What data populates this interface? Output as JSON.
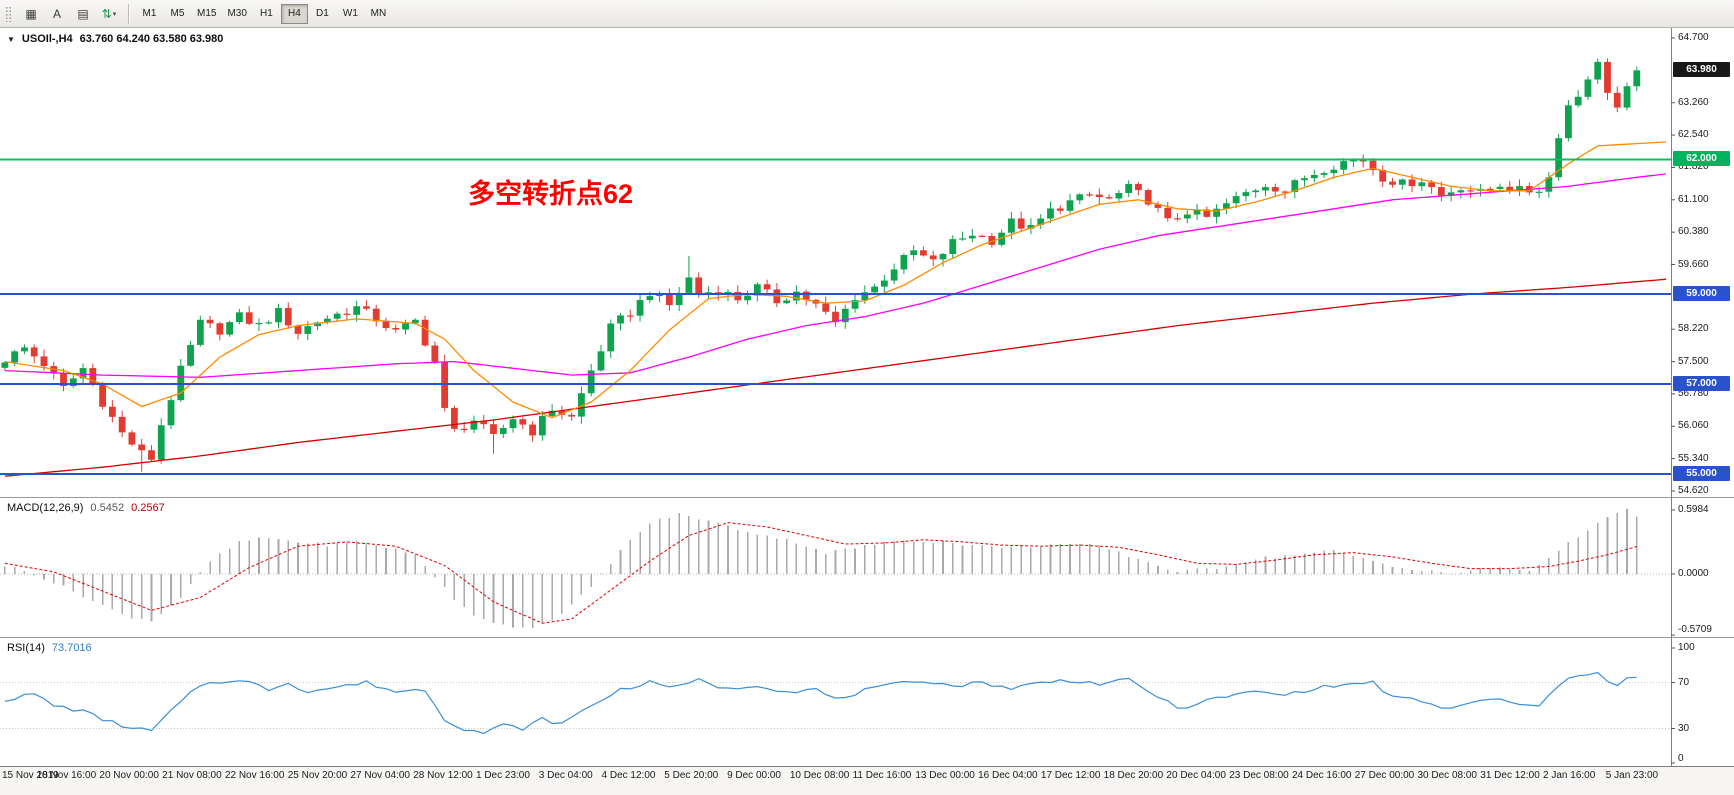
{
  "window": {
    "title": "USOIl-,H4",
    "ohlc": "63.760 64.240 63.580 63.980"
  },
  "toolbar": {
    "tools": [
      {
        "name": "market-grid",
        "glyph": "▦"
      },
      {
        "name": "text-annotation",
        "glyph": "A"
      },
      {
        "name": "indicator-window",
        "glyph": "▤"
      },
      {
        "name": "scale-arrows",
        "glyph": "⇅",
        "color": "#1b9a4b",
        "caret": true
      }
    ],
    "timeframes": [
      "M1",
      "M5",
      "M15",
      "M30",
      "H1",
      "H4",
      "D1",
      "W1",
      "MN"
    ],
    "active_timeframe": "H4"
  },
  "annotation": {
    "text": "多空转折点62",
    "color": "#ff0000"
  },
  "indicators": {
    "macd": {
      "name": "MACD(12,26,9)",
      "value": "0.5452",
      "signal": "0.2567",
      "axis": [
        {
          "label": "0.5984",
          "v": 0.5984
        },
        {
          "label": "0.0000",
          "v": 0
        },
        {
          "label": "-0.5709",
          "v": -0.5709
        }
      ]
    },
    "rsi": {
      "name": "RSI(14)",
      "value": "73.7016",
      "axis": [
        {
          "label": "100",
          "v": 100
        },
        {
          "label": "70",
          "v": 70
        },
        {
          "label": "30",
          "v": 30
        },
        {
          "label": "0",
          "v": 0
        }
      ],
      "levels": [
        70,
        30
      ]
    }
  },
  "price_axis": {
    "ticks": [
      {
        "label": "64.700",
        "p": 64.7
      },
      {
        "label": "63.260",
        "p": 63.26
      },
      {
        "label": "62.540",
        "p": 62.54
      },
      {
        "label": "61.820",
        "p": 61.82
      },
      {
        "label": "61.100",
        "p": 61.1
      },
      {
        "label": "60.380",
        "p": 60.38
      },
      {
        "label": "59.660",
        "p": 59.66
      },
      {
        "label": "58.220",
        "p": 58.22
      },
      {
        "label": "57.500",
        "p": 57.5
      },
      {
        "label": "56.780",
        "p": 56.78
      },
      {
        "label": "56.060",
        "p": 56.06
      },
      {
        "label": "55.340",
        "p": 55.34
      },
      {
        "label": "54.620",
        "p": 54.62
      }
    ],
    "badges": [
      {
        "label": "63.980",
        "p": 63.98,
        "bg": "#17181a"
      },
      {
        "label": "62.000",
        "p": 62.0,
        "bg": "#00b45e"
      },
      {
        "label": "59.000",
        "p": 59.0,
        "bg": "#2952cc"
      },
      {
        "label": "57.000",
        "p": 57.0,
        "bg": "#2952cc"
      },
      {
        "label": "55.000",
        "p": 55.0,
        "bg": "#2952cc"
      }
    ]
  },
  "hlines": [
    {
      "label": "62.000",
      "p": 62.0,
      "color": "#00c060",
      "width": 2
    },
    {
      "label": "59.000",
      "p": 59.0,
      "color": "#2952cc",
      "width": 2
    },
    {
      "label": "57.000",
      "p": 57.0,
      "color": "#2952cc",
      "width": 2
    },
    {
      "label": "55.000",
      "p": 55.0,
      "color": "#2952cc",
      "width": 2
    }
  ],
  "time_axis": {
    "labels": [
      "15 Nov 2019",
      "18 Nov 16:00",
      "20 Nov 00:00",
      "21 Nov 08:00",
      "22 Nov 16:00",
      "25 Nov 20:00",
      "27 Nov 04:00",
      "28 Nov 12:00",
      "1 Dec 23:00",
      "3 Dec 04:00",
      "4 Dec 12:00",
      "5 Dec 20:00",
      "9 Dec 00:00",
      "10 Dec 08:00",
      "11 Dec 16:00",
      "13 Dec 00:00",
      "16 Dec 04:00",
      "17 Dec 12:00",
      "18 Dec 20:00",
      "20 Dec 04:00",
      "23 Dec 08:00",
      "24 Dec 16:00",
      "27 Dec 00:00",
      "30 Dec 08:00",
      "31 Dec 12:00",
      "2 Jan 16:00",
      "5 Jan 23:00"
    ]
  },
  "chart_data": {
    "type": "candlestick",
    "symbol": "USOIl-",
    "period": "H4",
    "bars": 168,
    "last_close": 63.98,
    "price_range": [
      54.62,
      64.7
    ],
    "close_anchors": [
      [
        0,
        57.55
      ],
      [
        2,
        57.8
      ],
      [
        4,
        57.45
      ],
      [
        6,
        56.9
      ],
      [
        8,
        57.35
      ],
      [
        10,
        56.6
      ],
      [
        12,
        55.9
      ],
      [
        14,
        55.45
      ],
      [
        15,
        55.35
      ],
      [
        16,
        56.1
      ],
      [
        18,
        57.3
      ],
      [
        20,
        58.35
      ],
      [
        22,
        58.2
      ],
      [
        24,
        58.5
      ],
      [
        26,
        58.3
      ],
      [
        28,
        58.6
      ],
      [
        30,
        58.15
      ],
      [
        32,
        58.4
      ],
      [
        34,
        58.55
      ],
      [
        36,
        58.7
      ],
      [
        38,
        58.45
      ],
      [
        40,
        58.15
      ],
      [
        42,
        58.4
      ],
      [
        44,
        57.5
      ],
      [
        45,
        56.4
      ],
      [
        46,
        55.95
      ],
      [
        48,
        56.2
      ],
      [
        50,
        55.8
      ],
      [
        52,
        56.25
      ],
      [
        54,
        55.95
      ],
      [
        56,
        56.45
      ],
      [
        58,
        56.25
      ],
      [
        60,
        57.3
      ],
      [
        62,
        58.25
      ],
      [
        64,
        58.6
      ],
      [
        66,
        59.05
      ],
      [
        68,
        58.75
      ],
      [
        70,
        59.35
      ],
      [
        71,
        59.0
      ],
      [
        73,
        59.1
      ],
      [
        75,
        58.9
      ],
      [
        77,
        59.15
      ],
      [
        79,
        58.85
      ],
      [
        81,
        59.05
      ],
      [
        83,
        58.75
      ],
      [
        85,
        58.35
      ],
      [
        87,
        58.95
      ],
      [
        89,
        59.15
      ],
      [
        91,
        59.6
      ],
      [
        93,
        59.95
      ],
      [
        95,
        59.7
      ],
      [
        97,
        60.15
      ],
      [
        99,
        60.35
      ],
      [
        101,
        60.2
      ],
      [
        103,
        60.6
      ],
      [
        105,
        60.45
      ],
      [
        107,
        60.85
      ],
      [
        109,
        61.05
      ],
      [
        111,
        61.2
      ],
      [
        113,
        61.1
      ],
      [
        115,
        61.35
      ],
      [
        117,
        61.1
      ],
      [
        119,
        60.6
      ],
      [
        121,
        60.85
      ],
      [
        123,
        60.7
      ],
      [
        125,
        61.0
      ],
      [
        127,
        61.25
      ],
      [
        129,
        61.45
      ],
      [
        131,
        61.3
      ],
      [
        133,
        61.6
      ],
      [
        135,
        61.8
      ],
      [
        137,
        61.95
      ],
      [
        139,
        62.0
      ],
      [
        141,
        61.6
      ],
      [
        143,
        61.45
      ],
      [
        145,
        61.55
      ],
      [
        147,
        61.2
      ],
      [
        149,
        61.4
      ],
      [
        151,
        61.25
      ],
      [
        153,
        61.45
      ],
      [
        155,
        61.3
      ],
      [
        157,
        61.3
      ],
      [
        158,
        61.6
      ],
      [
        159,
        62.5
      ],
      [
        160,
        63.2
      ],
      [
        161,
        63.4
      ],
      [
        162,
        63.8
      ],
      [
        163,
        64.15
      ],
      [
        164,
        63.5
      ],
      [
        165,
        63.15
      ],
      [
        166,
        63.6
      ],
      [
        167,
        63.98
      ]
    ],
    "high_wicks": [
      [
        70,
        59.85
      ],
      [
        163,
        64.24
      ]
    ],
    "low_wicks": [
      [
        14,
        55.05
      ],
      [
        50,
        55.45
      ]
    ],
    "ma_fast_anchors": [
      [
        0,
        57.5
      ],
      [
        6,
        57.3
      ],
      [
        10,
        57.0
      ],
      [
        14,
        56.5
      ],
      [
        18,
        56.8
      ],
      [
        22,
        57.6
      ],
      [
        26,
        58.1
      ],
      [
        30,
        58.3
      ],
      [
        36,
        58.45
      ],
      [
        42,
        58.35
      ],
      [
        45,
        58.0
      ],
      [
        48,
        57.3
      ],
      [
        52,
        56.6
      ],
      [
        56,
        56.25
      ],
      [
        60,
        56.6
      ],
      [
        64,
        57.3
      ],
      [
        68,
        58.2
      ],
      [
        72,
        58.9
      ],
      [
        76,
        59.0
      ],
      [
        80,
        58.95
      ],
      [
        84,
        58.8
      ],
      [
        88,
        58.85
      ],
      [
        92,
        59.2
      ],
      [
        96,
        59.7
      ],
      [
        100,
        60.1
      ],
      [
        104,
        60.4
      ],
      [
        108,
        60.7
      ],
      [
        112,
        61.0
      ],
      [
        116,
        61.1
      ],
      [
        120,
        60.9
      ],
      [
        124,
        60.85
      ],
      [
        128,
        61.05
      ],
      [
        132,
        61.3
      ],
      [
        136,
        61.6
      ],
      [
        140,
        61.8
      ],
      [
        144,
        61.6
      ],
      [
        148,
        61.4
      ],
      [
        152,
        61.3
      ],
      [
        156,
        61.3
      ],
      [
        160,
        61.9
      ],
      [
        163,
        62.3
      ],
      [
        167,
        62.35
      ],
      [
        171,
        62.4
      ]
    ],
    "ma_mid_anchors": [
      [
        0,
        57.3
      ],
      [
        10,
        57.2
      ],
      [
        20,
        57.15
      ],
      [
        30,
        57.3
      ],
      [
        40,
        57.45
      ],
      [
        46,
        57.5
      ],
      [
        52,
        57.35
      ],
      [
        58,
        57.2
      ],
      [
        64,
        57.25
      ],
      [
        70,
        57.6
      ],
      [
        76,
        58.0
      ],
      [
        82,
        58.3
      ],
      [
        88,
        58.5
      ],
      [
        94,
        58.8
      ],
      [
        100,
        59.2
      ],
      [
        106,
        59.6
      ],
      [
        112,
        60.0
      ],
      [
        118,
        60.3
      ],
      [
        124,
        60.5
      ],
      [
        130,
        60.7
      ],
      [
        136,
        60.9
      ],
      [
        142,
        61.1
      ],
      [
        148,
        61.2
      ],
      [
        154,
        61.3
      ],
      [
        160,
        61.4
      ],
      [
        167,
        61.6
      ],
      [
        171,
        61.7
      ]
    ],
    "ma_slow_anchors": [
      [
        0,
        54.95
      ],
      [
        10,
        55.15
      ],
      [
        20,
        55.4
      ],
      [
        30,
        55.7
      ],
      [
        40,
        55.95
      ],
      [
        50,
        56.2
      ],
      [
        60,
        56.5
      ],
      [
        70,
        56.8
      ],
      [
        80,
        57.1
      ],
      [
        90,
        57.4
      ],
      [
        100,
        57.7
      ],
      [
        110,
        58.0
      ],
      [
        120,
        58.3
      ],
      [
        130,
        58.55
      ],
      [
        140,
        58.8
      ],
      [
        150,
        59.0
      ],
      [
        160,
        59.15
      ],
      [
        171,
        59.35
      ]
    ],
    "macd_anchors": [
      [
        0,
        0.08
      ],
      [
        3,
        0.0
      ],
      [
        6,
        -0.12
      ],
      [
        9,
        -0.25
      ],
      [
        12,
        -0.38
      ],
      [
        15,
        -0.44
      ],
      [
        18,
        -0.22
      ],
      [
        21,
        0.12
      ],
      [
        24,
        0.3
      ],
      [
        27,
        0.34
      ],
      [
        30,
        0.3
      ],
      [
        33,
        0.27
      ],
      [
        36,
        0.3
      ],
      [
        39,
        0.25
      ],
      [
        42,
        0.18
      ],
      [
        44,
        -0.02
      ],
      [
        46,
        -0.25
      ],
      [
        48,
        -0.38
      ],
      [
        51,
        -0.48
      ],
      [
        54,
        -0.5
      ],
      [
        57,
        -0.38
      ],
      [
        60,
        -0.12
      ],
      [
        63,
        0.22
      ],
      [
        66,
        0.48
      ],
      [
        69,
        0.56
      ],
      [
        72,
        0.5
      ],
      [
        75,
        0.42
      ],
      [
        78,
        0.36
      ],
      [
        81,
        0.3
      ],
      [
        84,
        0.2
      ],
      [
        88,
        0.26
      ],
      [
        92,
        0.32
      ],
      [
        96,
        0.3
      ],
      [
        100,
        0.26
      ],
      [
        104,
        0.25
      ],
      [
        108,
        0.28
      ],
      [
        112,
        0.26
      ],
      [
        116,
        0.14
      ],
      [
        120,
        0.02
      ],
      [
        124,
        0.06
      ],
      [
        128,
        0.14
      ],
      [
        132,
        0.18
      ],
      [
        136,
        0.22
      ],
      [
        140,
        0.12
      ],
      [
        144,
        0.04
      ],
      [
        148,
        0.0
      ],
      [
        152,
        0.06
      ],
      [
        156,
        0.03
      ],
      [
        159,
        0.22
      ],
      [
        162,
        0.42
      ],
      [
        164,
        0.52
      ],
      [
        166,
        0.5984
      ],
      [
        167,
        0.5452
      ]
    ],
    "macd_signal_anchors": [
      [
        0,
        0.1
      ],
      [
        5,
        0.02
      ],
      [
        10,
        -0.16
      ],
      [
        15,
        -0.34
      ],
      [
        20,
        -0.22
      ],
      [
        25,
        0.06
      ],
      [
        30,
        0.26
      ],
      [
        35,
        0.3
      ],
      [
        40,
        0.26
      ],
      [
        45,
        0.08
      ],
      [
        50,
        -0.26
      ],
      [
        55,
        -0.46
      ],
      [
        58,
        -0.42
      ],
      [
        62,
        -0.15
      ],
      [
        66,
        0.12
      ],
      [
        70,
        0.36
      ],
      [
        74,
        0.48
      ],
      [
        78,
        0.44
      ],
      [
        82,
        0.36
      ],
      [
        86,
        0.28
      ],
      [
        90,
        0.29
      ],
      [
        94,
        0.32
      ],
      [
        98,
        0.3
      ],
      [
        102,
        0.27
      ],
      [
        106,
        0.26
      ],
      [
        110,
        0.27
      ],
      [
        114,
        0.25
      ],
      [
        118,
        0.18
      ],
      [
        122,
        0.1
      ],
      [
        126,
        0.09
      ],
      [
        130,
        0.13
      ],
      [
        134,
        0.18
      ],
      [
        138,
        0.2
      ],
      [
        142,
        0.16
      ],
      [
        146,
        0.1
      ],
      [
        150,
        0.05
      ],
      [
        154,
        0.05
      ],
      [
        158,
        0.07
      ],
      [
        161,
        0.12
      ],
      [
        164,
        0.18
      ],
      [
        167,
        0.2567
      ]
    ],
    "rsi_anchors": [
      [
        0,
        55
      ],
      [
        3,
        60
      ],
      [
        5,
        50
      ],
      [
        8,
        45
      ],
      [
        10,
        38
      ],
      [
        13,
        30
      ],
      [
        15,
        28
      ],
      [
        17,
        45
      ],
      [
        20,
        68
      ],
      [
        23,
        72
      ],
      [
        25,
        70
      ],
      [
        27,
        64
      ],
      [
        29,
        70
      ],
      [
        31,
        62
      ],
      [
        34,
        66
      ],
      [
        37,
        70
      ],
      [
        40,
        62
      ],
      [
        43,
        64
      ],
      [
        45,
        38
      ],
      [
        47,
        30
      ],
      [
        49,
        26
      ],
      [
        51,
        33
      ],
      [
        53,
        30
      ],
      [
        55,
        38
      ],
      [
        57,
        34
      ],
      [
        60,
        50
      ],
      [
        63,
        64
      ],
      [
        66,
        70
      ],
      [
        69,
        66
      ],
      [
        71,
        72
      ],
      [
        74,
        64
      ],
      [
        77,
        68
      ],
      [
        80,
        62
      ],
      [
        83,
        64
      ],
      [
        85,
        55
      ],
      [
        88,
        63
      ],
      [
        91,
        68
      ],
      [
        94,
        72
      ],
      [
        97,
        67
      ],
      [
        100,
        70
      ],
      [
        103,
        65
      ],
      [
        106,
        70
      ],
      [
        109,
        72
      ],
      [
        112,
        69
      ],
      [
        115,
        72
      ],
      [
        118,
        58
      ],
      [
        120,
        47
      ],
      [
        122,
        52
      ],
      [
        125,
        58
      ],
      [
        128,
        62
      ],
      [
        131,
        59
      ],
      [
        134,
        65
      ],
      [
        137,
        68
      ],
      [
        140,
        70
      ],
      [
        142,
        57
      ],
      [
        145,
        54
      ],
      [
        147,
        47
      ],
      [
        150,
        52
      ],
      [
        153,
        56
      ],
      [
        155,
        50
      ],
      [
        157,
        49
      ],
      [
        159,
        68
      ],
      [
        161,
        76
      ],
      [
        163,
        80
      ],
      [
        164,
        72
      ],
      [
        165,
        67
      ],
      [
        166,
        74
      ],
      [
        167,
        73.7
      ]
    ],
    "colors": {
      "up": "#0fa34f",
      "down": "#e23b32",
      "ma_fast": "#ff8a00",
      "ma_mid": "#ff00ff",
      "ma_slow": "#d40000",
      "macd_hist": "#a9a9a9",
      "macd_signal": "#e00000",
      "rsi": "#3a8fd9"
    }
  }
}
